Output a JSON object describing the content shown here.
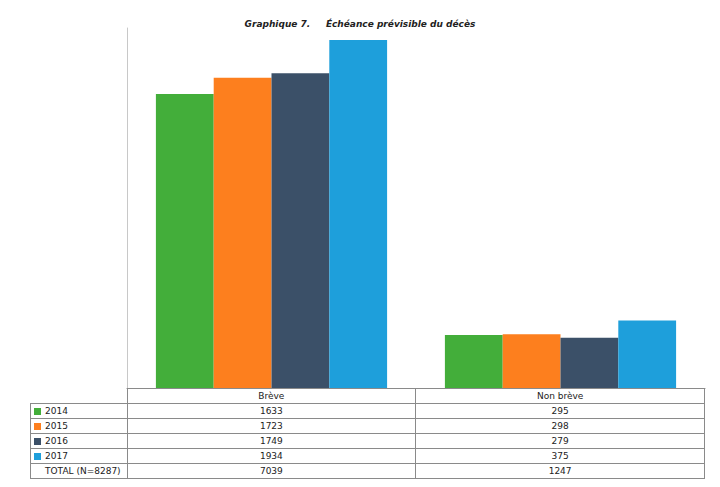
{
  "chart_data": {
    "type": "bar",
    "title": "Graphique 7.     Échéance prévisible du décès",
    "categories": [
      "Brève",
      "Non brève"
    ],
    "series": [
      {
        "name": "2014",
        "color": "#43ae3a",
        "values": [
          1633,
          295
        ]
      },
      {
        "name": "2015",
        "color": "#fd7f1e",
        "values": [
          1723,
          298
        ]
      },
      {
        "name": "2016",
        "color": "#3b5068",
        "values": [
          1749,
          279
        ]
      },
      {
        "name": "2017",
        "color": "#1e9fdb",
        "values": [
          1934,
          375
        ]
      }
    ],
    "totals": {
      "label": "TOTAL (N=8287)",
      "values": [
        7039,
        1247
      ]
    },
    "ylim": [
      0,
      2000
    ],
    "grid": false,
    "tick_labels": false
  }
}
